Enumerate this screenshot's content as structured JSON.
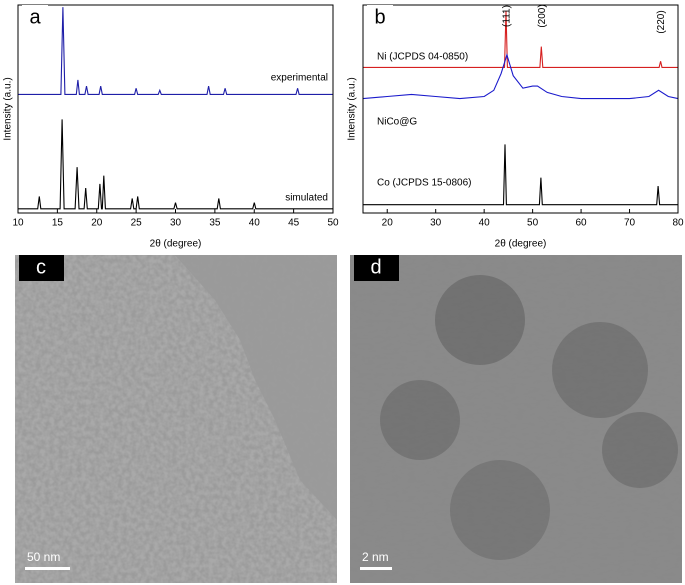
{
  "chart_data": [
    {
      "type": "line",
      "panel_label": "a",
      "xlabel": "2θ (degree)",
      "ylabel": "Intensity (a.u.)",
      "xlim": [
        10,
        50
      ],
      "xticks": [
        10,
        15,
        20,
        25,
        30,
        35,
        40,
        45,
        50
      ],
      "ylim": [
        0,
        100
      ],
      "series": [
        {
          "name": "experimental",
          "color": "#1f1fa8",
          "x": [
            10,
            15.45,
            15.7,
            15.95,
            17.4,
            17.6,
            17.8,
            18.5,
            18.7,
            18.9,
            20.3,
            20.5,
            20.7,
            24.8,
            25,
            25.2,
            27.8,
            28,
            28.2,
            34,
            34.2,
            34.4,
            36.1,
            36.3,
            36.5,
            45.3,
            45.5,
            45.7,
            50
          ],
          "values": [
            57,
            57,
            99,
            57,
            57,
            64,
            57,
            57,
            61,
            57,
            57,
            61,
            57,
            57,
            60,
            57,
            57,
            59,
            57,
            57,
            61,
            57,
            57,
            60,
            57,
            57,
            60,
            57,
            57
          ]
        },
        {
          "name": "simulated",
          "color": "#000000",
          "x": [
            10,
            12.5,
            12.7,
            12.9,
            15.35,
            15.6,
            15.85,
            17.25,
            17.5,
            17.75,
            18.4,
            18.6,
            18.8,
            20.2,
            20.4,
            20.6,
            20.7,
            20.9,
            21.1,
            24.3,
            24.5,
            24.7,
            25,
            25.2,
            25.4,
            29.8,
            30,
            30.2,
            35.3,
            35.5,
            35.7,
            39.8,
            40,
            40.2,
            50
          ],
          "values": [
            2,
            2,
            8,
            2,
            2,
            45,
            2,
            2,
            22,
            2,
            2,
            12,
            2,
            2,
            14,
            2,
            2,
            18,
            2,
            2,
            7,
            2,
            2,
            8,
            2,
            2,
            5,
            2,
            2,
            7,
            2,
            2,
            5,
            2,
            2
          ]
        }
      ]
    },
    {
      "type": "line",
      "panel_label": "b",
      "xlabel": "2θ (degree)",
      "ylabel": "Intensity (a.u.)",
      "xlim": [
        15,
        80
      ],
      "xticks": [
        20,
        30,
        40,
        50,
        60,
        70,
        80
      ],
      "ylim": [
        0,
        100
      ],
      "annotations": [
        "(111)",
        "(200)",
        "(220)"
      ],
      "series": [
        {
          "name": "Ni (JCPDS 04-0850)",
          "color": "#d62020",
          "x": [
            15,
            44.2,
            44.5,
            44.8,
            51.5,
            51.8,
            52.1,
            76.1,
            76.4,
            76.7,
            80
          ],
          "values": [
            70,
            70,
            97,
            70,
            70,
            80,
            70,
            70,
            73,
            70,
            70
          ]
        },
        {
          "name": "NiCo@G",
          "color": "#1a1acc",
          "x": [
            15,
            20,
            25,
            30,
            35,
            40,
            42,
            43.5,
            44.7,
            46,
            48,
            50,
            51,
            53,
            56,
            60,
            65,
            70,
            74,
            76,
            78,
            80
          ],
          "values": [
            55,
            56,
            57,
            56,
            55,
            56,
            59,
            67,
            76,
            66,
            60,
            61,
            61,
            58,
            56,
            55,
            55,
            55,
            56,
            59,
            56,
            55
          ]
        },
        {
          "name": "Co (JCPDS 15-0806)",
          "color": "#000000",
          "x": [
            15,
            44.0,
            44.3,
            44.6,
            51.4,
            51.7,
            52.0,
            75.6,
            75.9,
            76.2,
            80
          ],
          "values": [
            4,
            4,
            33,
            4,
            4,
            17,
            4,
            4,
            13,
            4,
            4
          ]
        }
      ]
    }
  ],
  "images": [
    {
      "label": "c",
      "scale_bar": "50 nm"
    },
    {
      "label": "d",
      "scale_bar": "2 nm"
    }
  ]
}
